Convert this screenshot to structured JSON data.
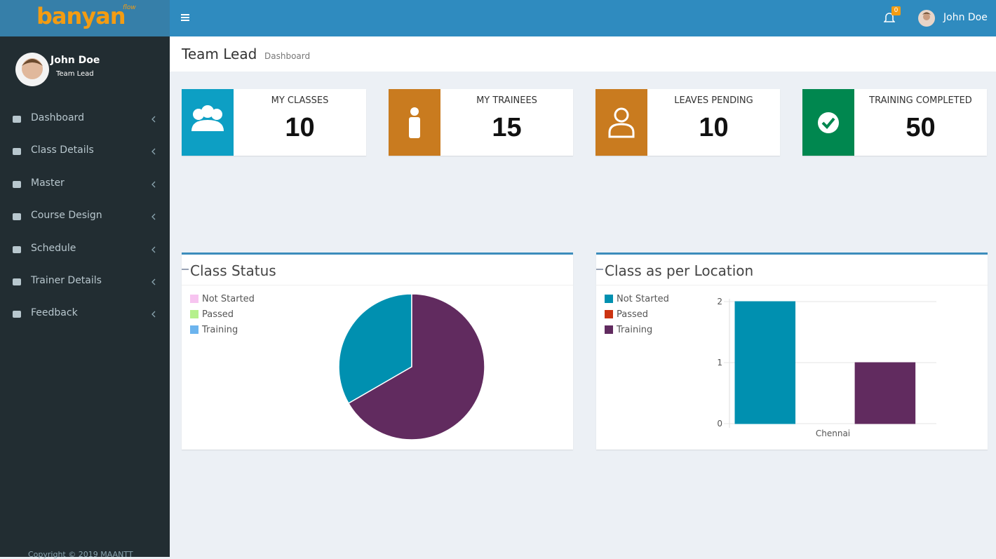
{
  "header": {
    "logo": "banyan",
    "logo_sup": "flow",
    "notifications": 0,
    "user_name": "John Doe"
  },
  "sidebar": {
    "user_name": "John Doe",
    "user_role": "Team Lead",
    "menu": [
      "Dashboard",
      "Class Details",
      "Master",
      "Course Design",
      "Schedule",
      "Trainer Details",
      "Feedback"
    ],
    "footer": "Copyright © 2019 MAANTT"
  },
  "page": {
    "title": "Team Lead",
    "subtitle": "Dashboard"
  },
  "info_boxes": [
    {
      "label": "MY CLASSES",
      "value": 10,
      "color": "#0d9fc4"
    },
    {
      "label": "MY TRAINEES",
      "value": 15,
      "color": "#c97b1f"
    },
    {
      "label": "LEAVES PENDING",
      "value": 10,
      "color": "#c97b1f"
    },
    {
      "label": "TRAINING  COMPLETED",
      "value": 50,
      "color": "#00874f"
    }
  ],
  "chart_data": [
    {
      "type": "pie",
      "title": "Class Status",
      "categories": [
        "Not Started",
        "Passed",
        "Training"
      ],
      "values": [
        1,
        0,
        2
      ],
      "colors": [
        "#0090b0",
        "#cc3311",
        "#612b5f"
      ],
      "legend_colors": [
        "#f7c4f0",
        "#b5f08c",
        "#6cb4ee"
      ]
    },
    {
      "type": "bar",
      "title": "Class as per Location",
      "categories": [
        "Chennai"
      ],
      "series": [
        {
          "name": "Not Started",
          "color": "#0090b0",
          "values": [
            2
          ]
        },
        {
          "name": "Passed",
          "color": "#cc3311",
          "values": [
            0
          ]
        },
        {
          "name": "Training",
          "color": "#612b5f",
          "values": [
            1
          ]
        }
      ],
      "ylim": [
        0,
        2
      ],
      "yticks": [
        0,
        1,
        2
      ],
      "grid": true
    }
  ]
}
